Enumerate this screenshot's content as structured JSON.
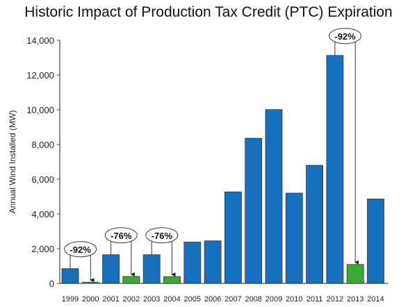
{
  "chart_data": {
    "type": "bar",
    "title": "Historic Impact of Production Tax Credit (PTC) Expiration",
    "ylabel": "Annual Wind Installed (MW)",
    "xlabel": "",
    "ylim": [
      0,
      14000
    ],
    "yticks": [
      0,
      2000,
      4000,
      6000,
      8000,
      10000,
      12000,
      14000
    ],
    "ytick_labels": [
      "0",
      "2,000",
      "4,000",
      "6,000",
      "8,000",
      "10,000",
      "12,000",
      "14,000"
    ],
    "categories": [
      "1999",
      "2000",
      "2001",
      "2002",
      "2003",
      "2004",
      "2005",
      "2006",
      "2007",
      "2008",
      "2009",
      "2010",
      "2011",
      "2012",
      "2013",
      "2014"
    ],
    "values": [
      850,
      70,
      1650,
      400,
      1650,
      390,
      2380,
      2450,
      5270,
      8360,
      10010,
      5200,
      6800,
      13130,
      1090,
      4860
    ],
    "bar_colors": [
      "blue",
      "green",
      "blue",
      "green",
      "blue",
      "green",
      "blue",
      "blue",
      "blue",
      "blue",
      "blue",
      "blue",
      "blue",
      "blue",
      "green",
      "blue"
    ],
    "colors": {
      "blue": "#1570c0",
      "green": "#3aaa35"
    },
    "annotations": [
      {
        "text": "-92%",
        "from": "1999",
        "to": "2000"
      },
      {
        "text": "-76%",
        "from": "2001",
        "to": "2002"
      },
      {
        "text": "-76%",
        "from": "2003",
        "to": "2004"
      },
      {
        "text": "-92%",
        "from": "2012",
        "to": "2013"
      }
    ],
    "grid": false
  }
}
